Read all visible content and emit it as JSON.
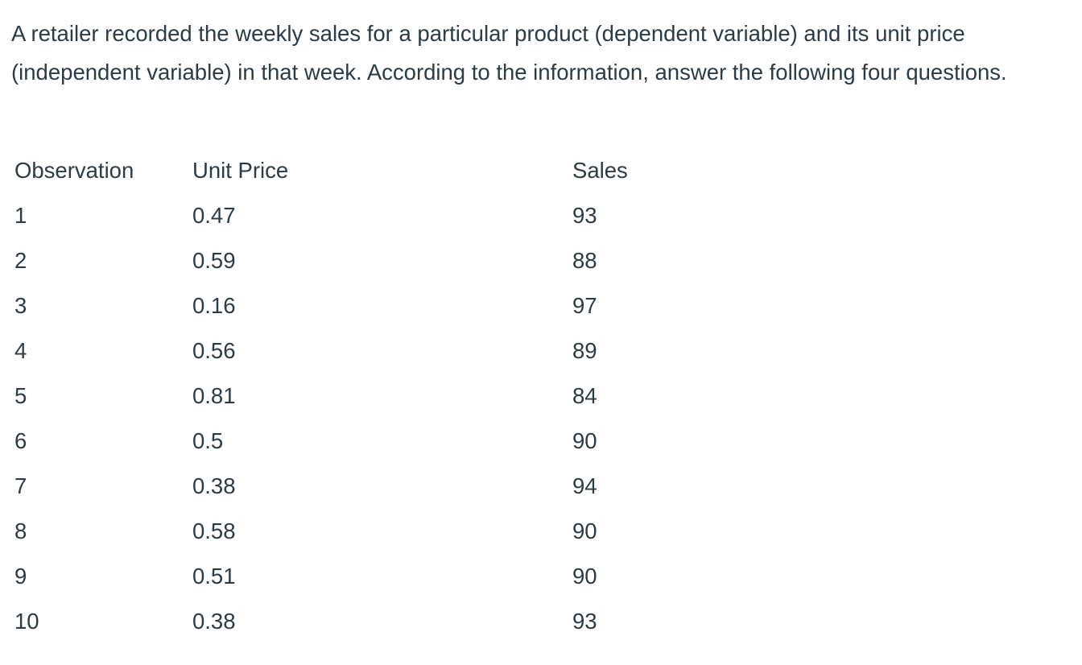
{
  "intro_text": "A retailer recorded the weekly sales  for a particular product (dependent variable) and its unit price (independent variable) in that week. According to the information, answer the following four questions.",
  "table": {
    "headers": {
      "observation": "Observation",
      "unit_price": "Unit Price",
      "sales": "Sales"
    },
    "rows": [
      {
        "observation": "1",
        "unit_price": "0.47",
        "sales": "93"
      },
      {
        "observation": "2",
        "unit_price": "0.59",
        "sales": "88"
      },
      {
        "observation": "3",
        "unit_price": "0.16",
        "sales": "97"
      },
      {
        "observation": "4",
        "unit_price": "0.56",
        "sales": "89"
      },
      {
        "observation": "5",
        "unit_price": "0.81",
        "sales": "84"
      },
      {
        "observation": "6",
        "unit_price": "0.5",
        "sales": "90"
      },
      {
        "observation": "7",
        "unit_price": "0.38",
        "sales": "94"
      },
      {
        "observation": "8",
        "unit_price": "0.58",
        "sales": "90"
      },
      {
        "observation": "9",
        "unit_price": "0.51",
        "sales": "90"
      },
      {
        "observation": "10",
        "unit_price": "0.38",
        "sales": "93"
      }
    ]
  }
}
